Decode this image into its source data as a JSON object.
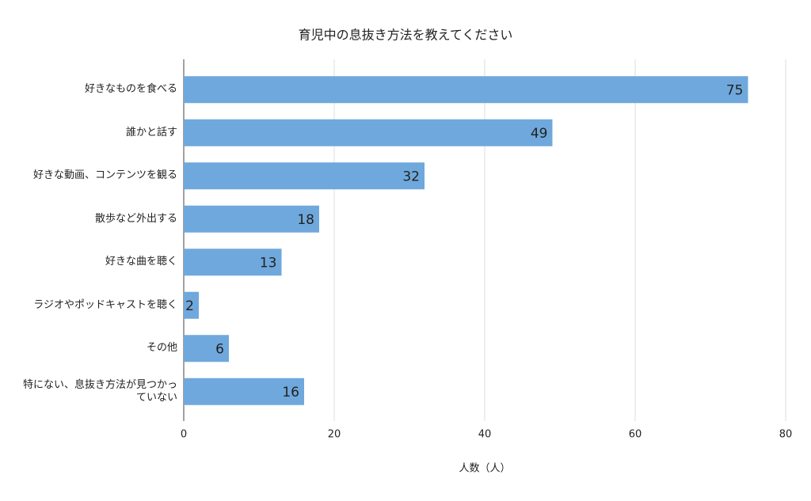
{
  "chart_data": {
    "type": "bar",
    "orientation": "horizontal",
    "title": "育児中の息抜き方法を教えてください",
    "x_label": "人数（人）",
    "categories": [
      "好きなものを食べる",
      "誰かと話す",
      "好きな動画、コンテンツを観る",
      "散歩など外出する",
      "好きな曲を聴く",
      "ラジオやポッドキャストを聴く",
      "その他",
      "特にない、息抜き方法が見つかっていない"
    ],
    "values": [
      75,
      49,
      32,
      18,
      13,
      2,
      6,
      16
    ],
    "color": "#6fa8dc",
    "xlim": [
      0,
      80
    ],
    "xticks": [
      0,
      20,
      40,
      60,
      80
    ],
    "grid": true
  }
}
